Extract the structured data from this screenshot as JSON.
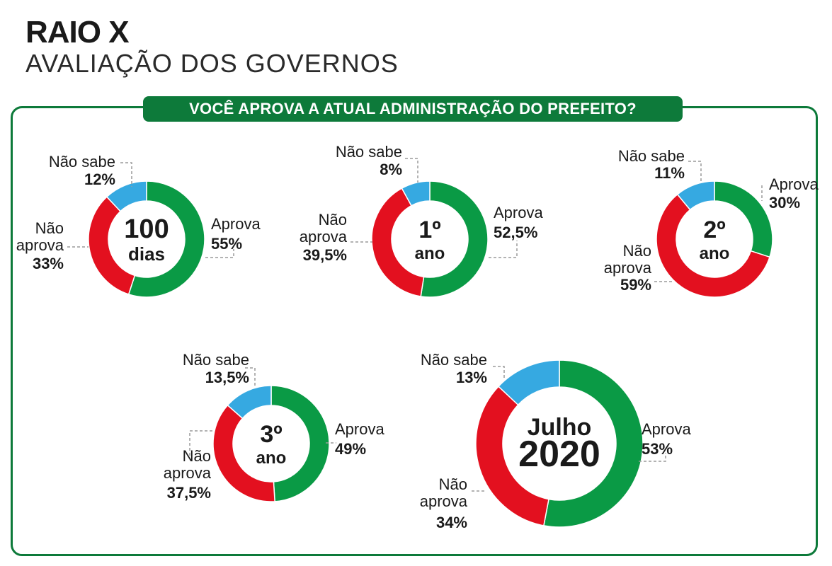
{
  "header": {
    "title": "RAIO X",
    "subtitle": "AVALIAÇÃO DOS GOVERNOS"
  },
  "question": "VOCÊ APROVA A ATUAL ADMINISTRAÇÃO DO PREFEITO?",
  "colors": {
    "aprova": "#0a9a45",
    "nao_aprova": "#e3101f",
    "nao_sabe": "#36a9e1",
    "frame": "#0d7a3a"
  },
  "chart_data": [
    {
      "type": "pie",
      "center_label": [
        "100",
        "dias"
      ],
      "slices": [
        {
          "name": "Aprova",
          "value": 55,
          "label": "55%"
        },
        {
          "name": "Não aprova",
          "value": 33,
          "label": "33%"
        },
        {
          "name": "Não sabe",
          "value": 12,
          "label": "12%"
        }
      ]
    },
    {
      "type": "pie",
      "center_label": [
        "1º",
        "ano"
      ],
      "slices": [
        {
          "name": "Aprova",
          "value": 52.5,
          "label": "52,5%"
        },
        {
          "name": "Não aprova",
          "value": 39.5,
          "label": "39,5%"
        },
        {
          "name": "Não sabe",
          "value": 8,
          "label": "8%"
        }
      ]
    },
    {
      "type": "pie",
      "center_label": [
        "2º",
        "ano"
      ],
      "slices": [
        {
          "name": "Aprova",
          "value": 30,
          "label": "30%"
        },
        {
          "name": "Não aprova",
          "value": 59,
          "label": "59%"
        },
        {
          "name": "Não sabe",
          "value": 11,
          "label": "11%"
        }
      ]
    },
    {
      "type": "pie",
      "center_label": [
        "3º",
        "ano"
      ],
      "slices": [
        {
          "name": "Aprova",
          "value": 49,
          "label": "49%"
        },
        {
          "name": "Não aprova",
          "value": 37.5,
          "label": "37,5%"
        },
        {
          "name": "Não sabe",
          "value": 13.5,
          "label": "13,5%"
        }
      ]
    },
    {
      "type": "pie",
      "center_label": [
        "Julho",
        "2020"
      ],
      "slices": [
        {
          "name": "Aprova",
          "value": 53,
          "label": "53%"
        },
        {
          "name": "Não aprova",
          "value": 34,
          "label": "34%"
        },
        {
          "name": "Não sabe",
          "value": 13,
          "label": "13%"
        }
      ]
    }
  ]
}
